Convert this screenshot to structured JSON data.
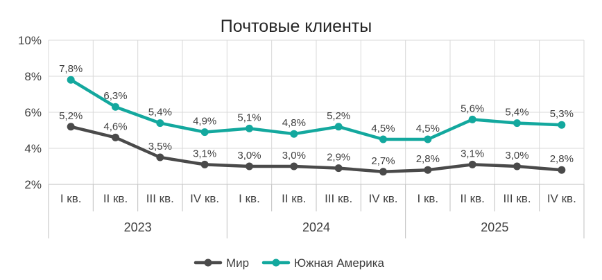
{
  "chart_data": {
    "type": "line",
    "title": "Почтовые клиенты",
    "categories": [
      "I кв.",
      "II кв.",
      "III кв.",
      "IV кв.",
      "I кв.",
      "II кв.",
      "III кв.",
      "IV кв.",
      "I кв.",
      "II кв.",
      "III кв.",
      "IV кв."
    ],
    "groups": [
      {
        "label": "2023",
        "span": 4
      },
      {
        "label": "2024",
        "span": 4
      },
      {
        "label": "2025",
        "span": 4
      }
    ],
    "y_ticks": [
      "2%",
      "4%",
      "6%",
      "8%",
      "10%"
    ],
    "ylim": [
      2,
      10
    ],
    "grid": true,
    "legend_position": "bottom",
    "series": [
      {
        "name": "Мир",
        "color": "#4a4a4a",
        "values": [
          5.2,
          4.6,
          3.5,
          3.1,
          3.0,
          3.0,
          2.9,
          2.7,
          2.8,
          3.1,
          3.0,
          2.8
        ],
        "labels": [
          "5,2%",
          "4,6%",
          "3,5%",
          "3,1%",
          "3,0%",
          "3,0%",
          "2,9%",
          "2,7%",
          "2,8%",
          "3,1%",
          "3,0%",
          "2,8%"
        ]
      },
      {
        "name": "Южная Америка",
        "color": "#13a89e",
        "values": [
          7.8,
          6.3,
          5.4,
          4.9,
          5.1,
          4.8,
          5.2,
          4.5,
          4.5,
          5.6,
          5.4,
          5.3
        ],
        "labels": [
          "7,8%",
          "6,3%",
          "5,4%",
          "4,9%",
          "5,1%",
          "4,8%",
          "5,2%",
          "4,5%",
          "4,5%",
          "5,6%",
          "5,4%",
          "5,3%"
        ]
      }
    ]
  }
}
